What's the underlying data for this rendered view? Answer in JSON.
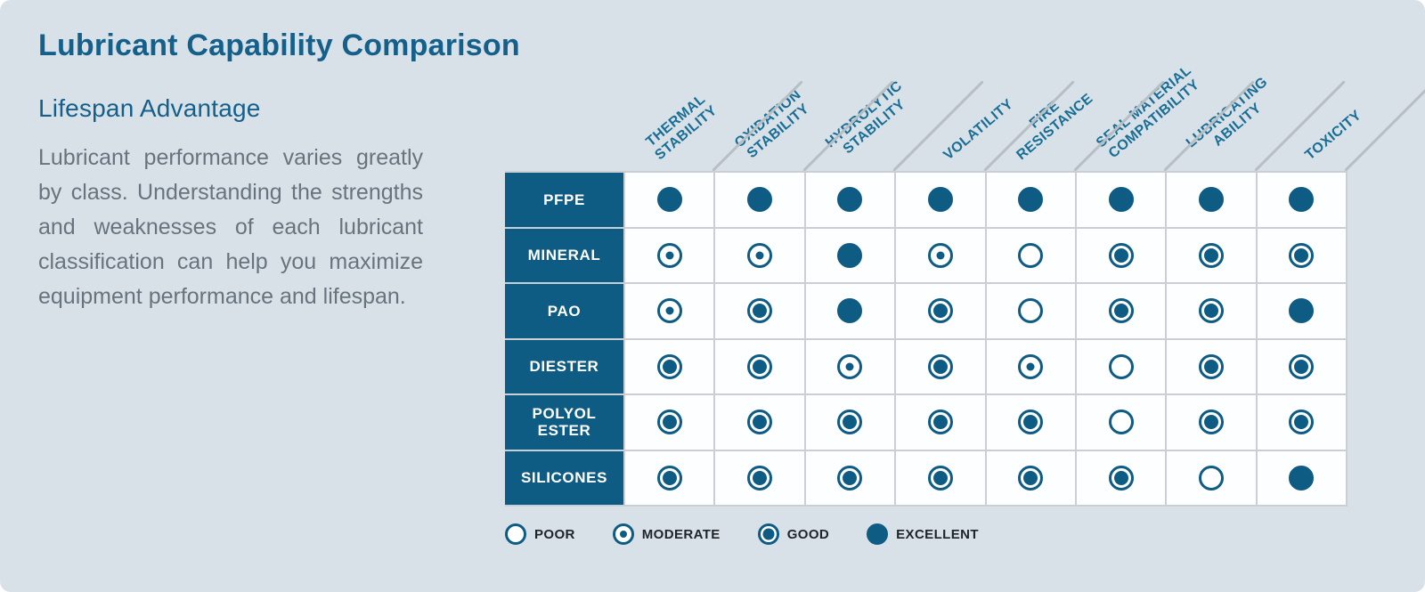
{
  "page": {
    "title": "Lubricant Capability Comparison",
    "subtitle": "Lifespan Advantage",
    "description": "Lubricant performance varies greatly by class. Understanding the strengths and weaknesses of each lubricant classification can help you maximize equipment performance and lifespan."
  },
  "colors": {
    "accent_teal": "#0e5c84",
    "column_label_teal": "#1a6e95",
    "background": "#d8e1e8",
    "body_text": "#68737d",
    "grid_line": "#c9cfd4"
  },
  "chart_data": {
    "type": "table",
    "title": "Lubricant Capability Comparison",
    "rating_scale": [
      "poor",
      "moderate",
      "good",
      "excellent"
    ],
    "columns": [
      [
        "THERMAL",
        "STABILITY"
      ],
      [
        "OXIDATION",
        "STABILITY"
      ],
      [
        "HYDROLYTIC",
        "STABILITY"
      ],
      [
        "VOLATILITY"
      ],
      [
        "FIRE",
        "RESISTANCE"
      ],
      [
        "SEAL MATERIAL",
        "COMPATIBILITY"
      ],
      [
        "LUBRICATING",
        "ABILITY"
      ],
      [
        "TOXICITY"
      ]
    ],
    "rows": [
      {
        "label": "PFPE",
        "ratings": [
          "excellent",
          "excellent",
          "excellent",
          "excellent",
          "excellent",
          "excellent",
          "excellent",
          "excellent"
        ]
      },
      {
        "label": "MINERAL",
        "ratings": [
          "moderate",
          "moderate",
          "excellent",
          "moderate",
          "poor",
          "good",
          "good",
          "good"
        ]
      },
      {
        "label": "PAO",
        "ratings": [
          "moderate",
          "good",
          "excellent",
          "good",
          "poor",
          "good",
          "good",
          "excellent"
        ]
      },
      {
        "label": "DIESTER",
        "ratings": [
          "good",
          "good",
          "moderate",
          "good",
          "moderate",
          "poor",
          "good",
          "good"
        ]
      },
      {
        "label": "POLYOL ESTER",
        "ratings": [
          "good",
          "good",
          "good",
          "good",
          "good",
          "poor",
          "good",
          "good"
        ]
      },
      {
        "label": "SILICONES",
        "ratings": [
          "good",
          "good",
          "good",
          "good",
          "good",
          "good",
          "poor",
          "excellent"
        ]
      }
    ],
    "legend": [
      {
        "key": "poor",
        "label": "POOR"
      },
      {
        "key": "moderate",
        "label": "MODERATE"
      },
      {
        "key": "good",
        "label": "GOOD"
      },
      {
        "key": "excellent",
        "label": "EXCELLENT"
      }
    ],
    "layout_hints": {
      "legend_position": "bottom",
      "column_headers_rotated_degrees": -40,
      "grid": true
    }
  }
}
